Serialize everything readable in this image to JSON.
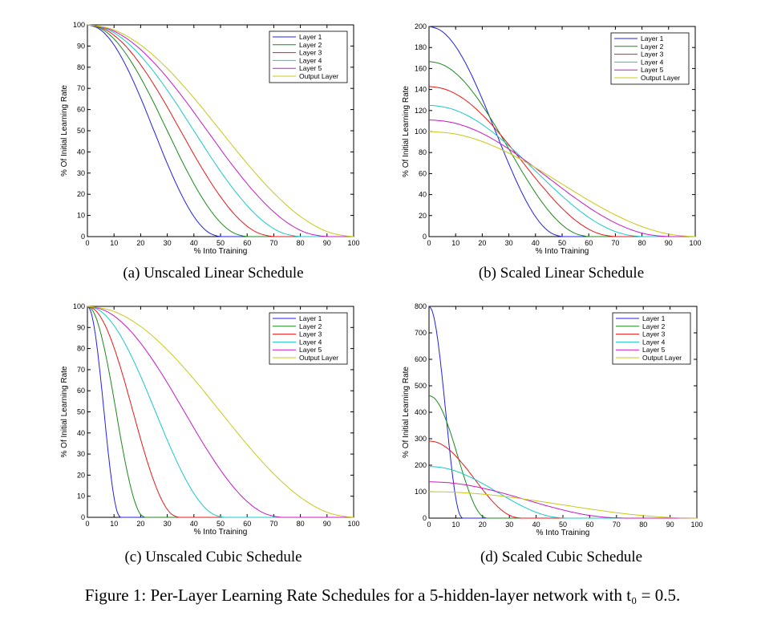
{
  "figure_caption": "Figure 1: Per-Layer Learning Rate Schedules for a 5-hidden-layer network with t₀ = 0.5.",
  "colors": {
    "layer1": "#2020e8",
    "layer2": "#1a8a1a",
    "layer3": "#e81818",
    "layer4": "#18c8c8",
    "layer5": "#c818c8",
    "output": "#c8c818"
  },
  "chart_data": [
    {
      "type": "line",
      "caption": "(a) Unscaled Linear Schedule",
      "xlabel": "% Into Training",
      "ylabel": "% Of Initial Learning Rate",
      "xlim": [
        0,
        100
      ],
      "ylim": [
        0,
        100
      ],
      "xticks": [
        "0",
        "10",
        "20",
        "30",
        "40",
        "50",
        "60",
        "70",
        "80",
        "90",
        "100"
      ],
      "yticks": [
        "0",
        "10",
        "20",
        "30",
        "40",
        "50",
        "60",
        "70",
        "80",
        "90",
        "100"
      ],
      "legend_position": "top-right",
      "series": [
        {
          "name": "Layer 1",
          "x": [
            0,
            5,
            10,
            15,
            20,
            25,
            30,
            35,
            40,
            45,
            50
          ],
          "y": [
            100,
            97.6,
            90.5,
            79.4,
            65.5,
            50,
            34.5,
            20.6,
            9.5,
            2.4,
            0
          ]
        },
        {
          "name": "Layer 2",
          "x": [
            0,
            6,
            12,
            18,
            24,
            30,
            36,
            42,
            48,
            54,
            60
          ],
          "y": [
            100,
            97.6,
            90.5,
            79.4,
            65.5,
            50,
            34.5,
            20.6,
            9.5,
            2.4,
            0
          ]
        },
        {
          "name": "Layer 3",
          "x": [
            0,
            7,
            14,
            21,
            28,
            35,
            42,
            49,
            56,
            63,
            70
          ],
          "y": [
            100,
            97.6,
            90.5,
            79.4,
            65.5,
            50,
            34.5,
            20.6,
            9.5,
            2.4,
            0
          ]
        },
        {
          "name": "Layer 4",
          "x": [
            0,
            8,
            16,
            24,
            32,
            40,
            48,
            56,
            64,
            72,
            80
          ],
          "y": [
            100,
            97.6,
            90.5,
            79.4,
            65.5,
            50,
            34.5,
            20.6,
            9.5,
            2.4,
            0
          ]
        },
        {
          "name": "Layer 5",
          "x": [
            0,
            9,
            18,
            27,
            36,
            45,
            54,
            63,
            72,
            81,
            90
          ],
          "y": [
            100,
            97.6,
            90.5,
            79.4,
            65.5,
            50,
            34.5,
            20.6,
            9.5,
            2.4,
            0
          ]
        },
        {
          "name": "Output Layer",
          "x": [
            0,
            10,
            20,
            30,
            40,
            50,
            60,
            70,
            80,
            90,
            100
          ],
          "y": [
            100,
            97.6,
            90.5,
            79.4,
            65.5,
            50,
            34.5,
            20.6,
            9.5,
            2.4,
            0
          ]
        }
      ]
    },
    {
      "type": "line",
      "caption": "(b) Scaled Linear Schedule",
      "xlabel": "% Into Training",
      "ylabel": "% Of Initial Learning Rate",
      "xlim": [
        0,
        100
      ],
      "ylim": [
        0,
        200
      ],
      "xticks": [
        "0",
        "10",
        "20",
        "30",
        "40",
        "50",
        "60",
        "70",
        "80",
        "90",
        "100"
      ],
      "yticks": [
        "0",
        "20",
        "40",
        "60",
        "80",
        "100",
        "120",
        "140",
        "160",
        "180",
        "200"
      ],
      "legend_position": "top-right",
      "series": [
        {
          "name": "Layer 1",
          "x": [
            0,
            5,
            10,
            15,
            20,
            25,
            30,
            35,
            40,
            45,
            50
          ],
          "y": [
            200,
            195.1,
            181,
            158.8,
            130.9,
            100,
            69.1,
            41.2,
            19,
            4.9,
            0
          ]
        },
        {
          "name": "Layer 2",
          "x": [
            0,
            6,
            12,
            18,
            24,
            30,
            36,
            42,
            48,
            54,
            60
          ],
          "y": [
            166.7,
            162.6,
            150.8,
            132.3,
            109.1,
            83.3,
            57.6,
            34.3,
            15.9,
            4.1,
            0
          ]
        },
        {
          "name": "Layer 3",
          "x": [
            0,
            7,
            14,
            21,
            28,
            35,
            42,
            49,
            56,
            63,
            70
          ],
          "y": [
            142.9,
            139.4,
            129.3,
            113.4,
            93.5,
            71.4,
            49.4,
            29.4,
            13.6,
            3.5,
            0
          ]
        },
        {
          "name": "Layer 4",
          "x": [
            0,
            8,
            16,
            24,
            32,
            40,
            48,
            56,
            64,
            72,
            80
          ],
          "y": [
            125,
            121.9,
            113.1,
            99.2,
            81.8,
            62.5,
            43.2,
            25.7,
            11.9,
            3.1,
            0
          ]
        },
        {
          "name": "Layer 5",
          "x": [
            0,
            9,
            18,
            27,
            36,
            45,
            54,
            63,
            72,
            81,
            90
          ],
          "y": [
            111.1,
            108.4,
            100.6,
            88.2,
            72.7,
            55.6,
            38.4,
            22.9,
            10.6,
            2.7,
            0
          ]
        },
        {
          "name": "Output Layer",
          "x": [
            0,
            10,
            20,
            30,
            40,
            50,
            60,
            70,
            80,
            90,
            100
          ],
          "y": [
            100,
            97.6,
            90.5,
            79.4,
            65.5,
            50,
            34.5,
            20.6,
            9.5,
            2.4,
            0
          ]
        }
      ]
    },
    {
      "type": "line",
      "caption": "(c) Unscaled Cubic Schedule",
      "xlabel": "% Into Training",
      "ylabel": "% Of Initial Learning Rate",
      "xlim": [
        0,
        100
      ],
      "ylim": [
        0,
        100
      ],
      "xticks": [
        "0",
        "10",
        "20",
        "30",
        "40",
        "50",
        "60",
        "70",
        "80",
        "90",
        "100"
      ],
      "yticks": [
        "0",
        "10",
        "20",
        "30",
        "40",
        "50",
        "60",
        "70",
        "80",
        "90",
        "100"
      ],
      "legend_position": "top-right",
      "series": [
        {
          "name": "Layer 1",
          "x": [
            0,
            1.25,
            2.5,
            3.75,
            5,
            6.25,
            7.5,
            8.75,
            10,
            11.25,
            12.5
          ],
          "y": [
            100,
            97.6,
            90.5,
            79.4,
            65.5,
            50,
            34.5,
            20.6,
            9.5,
            2.4,
            0
          ]
        },
        {
          "name": "Layer 2",
          "x": [
            0,
            2.16,
            4.32,
            6.48,
            8.64,
            10.8,
            12.96,
            15.12,
            17.28,
            19.44,
            21.6
          ],
          "y": [
            100,
            97.6,
            90.5,
            79.4,
            65.5,
            50,
            34.5,
            20.6,
            9.5,
            2.4,
            0
          ]
        },
        {
          "name": "Layer 3",
          "x": [
            0,
            3.43,
            6.86,
            10.29,
            13.72,
            17.15,
            20.58,
            24.01,
            27.44,
            30.87,
            34.3
          ],
          "y": [
            100,
            97.6,
            90.5,
            79.4,
            65.5,
            50,
            34.5,
            20.6,
            9.5,
            2.4,
            0
          ]
        },
        {
          "name": "Layer 4",
          "x": [
            0,
            5.12,
            10.24,
            15.36,
            20.48,
            25.6,
            30.72,
            35.84,
            40.96,
            46.08,
            51.2
          ],
          "y": [
            100,
            97.6,
            90.5,
            79.4,
            65.5,
            50,
            34.5,
            20.6,
            9.5,
            2.4,
            0
          ]
        },
        {
          "name": "Layer 5",
          "x": [
            0,
            7.29,
            14.58,
            21.87,
            29.16,
            36.45,
            43.74,
            51.03,
            58.32,
            65.61,
            72.9
          ],
          "y": [
            100,
            97.6,
            90.5,
            79.4,
            65.5,
            50,
            34.5,
            20.6,
            9.5,
            2.4,
            0
          ]
        },
        {
          "name": "Output Layer",
          "x": [
            0,
            10,
            20,
            30,
            40,
            50,
            60,
            70,
            80,
            90,
            100
          ],
          "y": [
            100,
            97.6,
            90.5,
            79.4,
            65.5,
            50,
            34.5,
            20.6,
            9.5,
            2.4,
            0
          ]
        }
      ]
    },
    {
      "type": "line",
      "caption": "(d) Scaled Cubic Schedule",
      "xlabel": "% Into Training",
      "ylabel": "% Of Initial Learning Rate",
      "xlim": [
        0,
        100
      ],
      "ylim": [
        0,
        800
      ],
      "xticks": [
        "0",
        "10",
        "20",
        "30",
        "40",
        "50",
        "60",
        "70",
        "80",
        "90",
        "100"
      ],
      "yticks": [
        "0",
        "100",
        "200",
        "300",
        "400",
        "500",
        "600",
        "700",
        "800"
      ],
      "legend_position": "top-right",
      "series": [
        {
          "name": "Layer 1",
          "x": [
            0,
            1.25,
            2.5,
            3.75,
            5,
            6.25,
            7.5,
            8.75,
            10,
            11.25,
            12.5
          ],
          "y": [
            800,
            780.4,
            724.3,
            635.2,
            523.6,
            400,
            276.4,
            164.8,
            75.7,
            19.6,
            0
          ]
        },
        {
          "name": "Layer 2",
          "x": [
            0,
            2.16,
            4.32,
            6.48,
            8.64,
            10.8,
            12.96,
            15.12,
            17.28,
            19.44,
            21.6
          ],
          "y": [
            463,
            451.6,
            419.2,
            367.6,
            303,
            231.5,
            160,
            95.4,
            43.8,
            11.4,
            0
          ]
        },
        {
          "name": "Layer 3",
          "x": [
            0,
            3.43,
            6.86,
            10.29,
            13.72,
            17.15,
            20.58,
            24.01,
            27.44,
            30.87,
            34.3
          ],
          "y": [
            291.5,
            284.4,
            263.9,
            231.5,
            190.8,
            145.8,
            100.7,
            60,
            27.6,
            7.1,
            0
          ]
        },
        {
          "name": "Layer 4",
          "x": [
            0,
            5.12,
            10.24,
            15.36,
            20.48,
            25.6,
            30.72,
            35.84,
            40.96,
            46.08,
            51.2
          ],
          "y": [
            195.3,
            190.5,
            176.8,
            155.1,
            127.8,
            97.7,
            67.5,
            40.2,
            18.5,
            4.8,
            0
          ]
        },
        {
          "name": "Layer 5",
          "x": [
            0,
            7.29,
            14.58,
            21.87,
            29.16,
            36.45,
            43.74,
            51.03,
            58.32,
            65.61,
            72.9
          ],
          "y": [
            137.2,
            133.8,
            124.2,
            108.9,
            89.8,
            68.6,
            47.4,
            28.3,
            13,
            3.4,
            0
          ]
        },
        {
          "name": "Output Layer",
          "x": [
            0,
            10,
            20,
            30,
            40,
            50,
            60,
            70,
            80,
            90,
            100
          ],
          "y": [
            100,
            97.6,
            90.5,
            79.4,
            65.5,
            50,
            34.5,
            20.6,
            9.5,
            2.4,
            0
          ]
        }
      ]
    }
  ]
}
